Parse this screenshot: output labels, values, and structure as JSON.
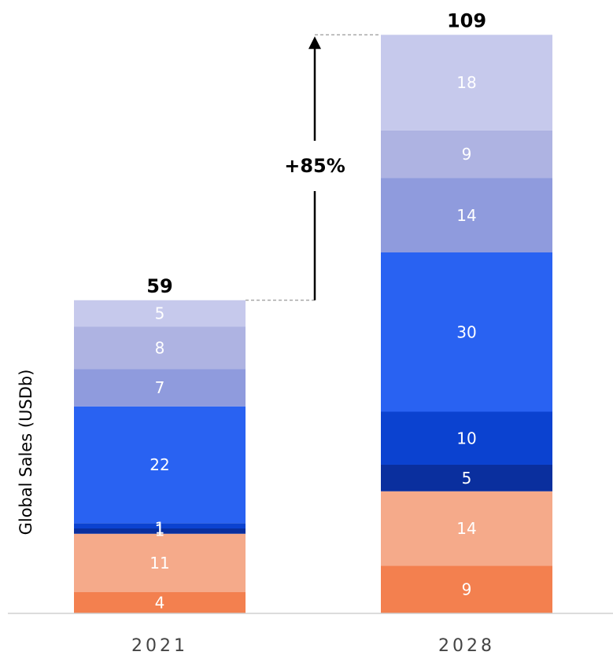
{
  "chart_data": {
    "type": "bar",
    "stacked": true,
    "ylabel": "Global Sales (USDb)",
    "categories": [
      "2021",
      "2028"
    ],
    "totals": [
      "59",
      "109"
    ],
    "growth_label": "+85%",
    "series": [
      {
        "color": "#f3804f",
        "values": [
          4,
          9
        ]
      },
      {
        "color": "#f5aa8a",
        "values": [
          11,
          14
        ]
      },
      {
        "color": "#0a2f9e",
        "values": [
          1,
          5
        ]
      },
      {
        "color": "#0b42d0",
        "values": [
          1,
          10
        ]
      },
      {
        "color": "#2962f2",
        "values": [
          22,
          30
        ]
      },
      {
        "color": "#8f9bdd",
        "values": [
          7,
          14
        ]
      },
      {
        "color": "#aeb3e2",
        "values": [
          8,
          9
        ]
      },
      {
        "color": "#c6c9ec",
        "values": [
          5,
          18
        ]
      }
    ],
    "ylim": [
      0,
      109
    ],
    "grid": false,
    "legend": "none"
  }
}
